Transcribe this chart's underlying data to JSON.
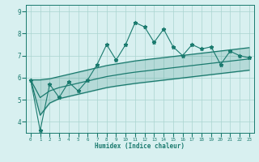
{
  "xlabel": "Humidex (Indice chaleur)",
  "x": [
    0,
    1,
    2,
    3,
    4,
    5,
    6,
    7,
    8,
    9,
    10,
    11,
    12,
    13,
    14,
    15,
    16,
    17,
    18,
    19,
    20,
    21,
    22,
    23
  ],
  "y_main": [
    5.9,
    3.6,
    5.7,
    5.1,
    5.8,
    5.4,
    5.9,
    6.6,
    7.5,
    6.8,
    7.5,
    8.5,
    8.3,
    7.6,
    8.2,
    7.4,
    7.0,
    7.5,
    7.3,
    7.4,
    6.6,
    7.2,
    7.0,
    6.9
  ],
  "y_upper": [
    5.9,
    5.9,
    5.95,
    6.05,
    6.15,
    6.25,
    6.35,
    6.45,
    6.55,
    6.62,
    6.69,
    6.76,
    6.81,
    6.86,
    6.91,
    6.96,
    7.01,
    7.06,
    7.11,
    7.16,
    7.21,
    7.26,
    7.31,
    7.36
  ],
  "y_lower": [
    5.9,
    4.3,
    4.85,
    5.05,
    5.15,
    5.25,
    5.35,
    5.45,
    5.55,
    5.62,
    5.68,
    5.74,
    5.79,
    5.84,
    5.89,
    5.94,
    5.99,
    6.04,
    6.09,
    6.14,
    6.19,
    6.24,
    6.29,
    6.34
  ],
  "y_mid": [
    5.9,
    5.1,
    5.4,
    5.55,
    5.65,
    5.75,
    5.85,
    5.95,
    6.05,
    6.12,
    6.19,
    6.25,
    6.3,
    6.35,
    6.4,
    6.45,
    6.5,
    6.55,
    6.6,
    6.65,
    6.7,
    6.75,
    6.8,
    6.85
  ],
  "color_main": "#1a7a6e",
  "bg_color": "#d8f0f0",
  "grid_color": "#aad4d0",
  "ylim": [
    3.5,
    9.3
  ],
  "yticks": [
    4,
    5,
    6,
    7,
    8,
    9
  ],
  "xlim": [
    -0.5,
    23.5
  ]
}
